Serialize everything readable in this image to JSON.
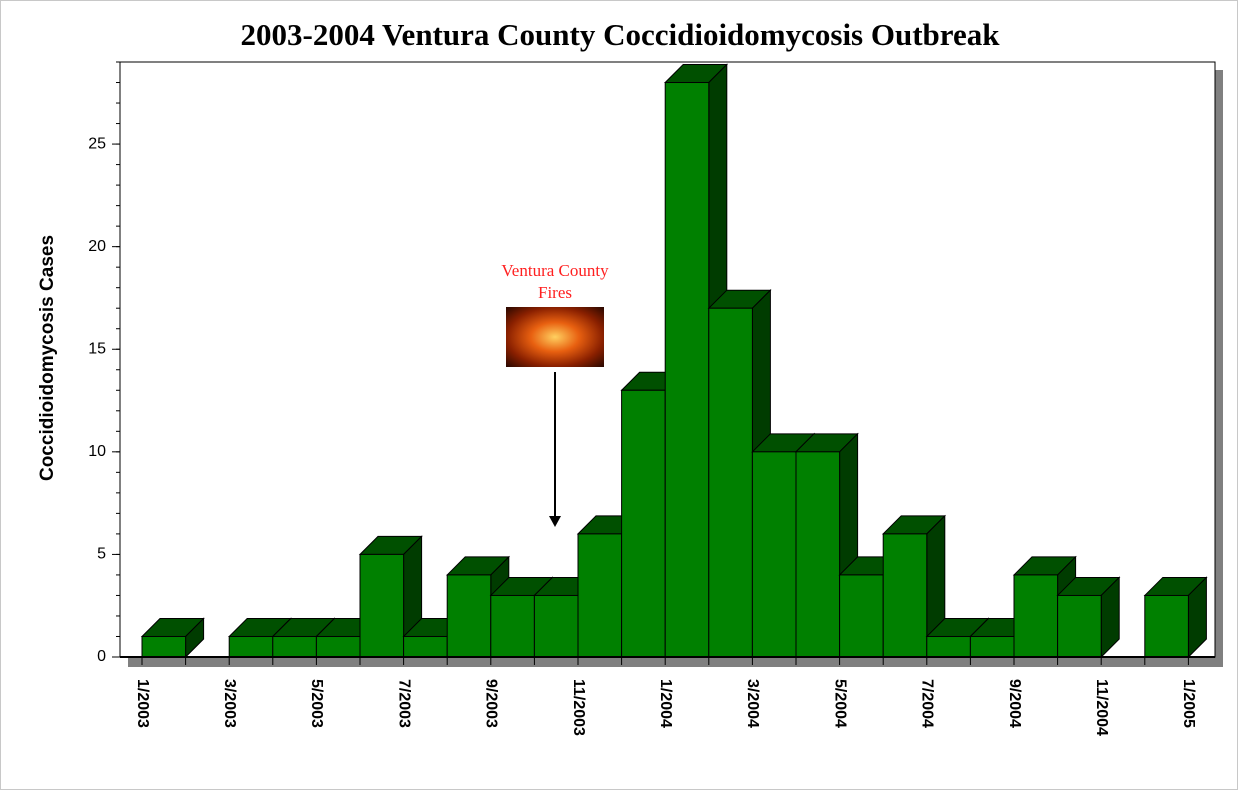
{
  "chart_data": {
    "type": "histogram",
    "title": "2003-2004 Ventura County Coccidioidomycosis Outbreak",
    "y_label": "Coccidioidomycosis Cases",
    "bins": [
      "1/2003",
      null,
      "3/2003",
      null,
      "5/2003",
      null,
      "7/2003",
      null,
      "9/2003",
      null,
      "11/2003",
      null,
      "1/2004",
      null,
      "3/2004",
      null,
      "5/2004",
      null,
      "7/2004",
      null,
      "9/2004",
      null,
      "11/2004",
      null,
      "1/2005"
    ],
    "values": [
      1,
      0,
      1,
      1,
      1,
      5,
      1,
      4,
      3,
      3,
      6,
      13,
      28,
      17,
      10,
      10,
      4,
      6,
      1,
      1,
      4,
      3,
      0,
      3
    ],
    "color": "#008000",
    "ylim": [
      0,
      29
    ],
    "yticks": [
      0,
      5,
      10,
      15,
      20,
      25
    ],
    "annotation": {
      "lines": [
        "Ventura County",
        "Fires"
      ],
      "color": "#ff2020"
    }
  }
}
